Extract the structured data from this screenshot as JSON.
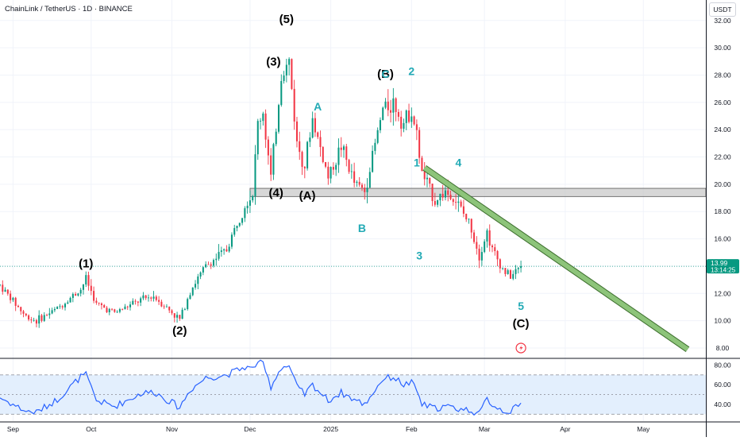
{
  "header": {
    "symbol_title": "ChainLink / TetherUS · 1D · BINANCE",
    "currency": "USDT"
  },
  "price_badge": {
    "price": "13.99",
    "countdown": "13:14:25",
    "color": "#089981"
  },
  "colors": {
    "up": "#089981",
    "down": "#f23645",
    "rsi_line": "#2962ff",
    "rsi_band": "#e3effd",
    "zone": "#c9c9c9",
    "trendline": "#8dc47a",
    "wave_black": "#000000",
    "wave_teal": "#22aab5"
  },
  "chart_data": [
    {
      "type": "candlestick",
      "title": "ChainLink / TetherUS · 1D · BINANCE",
      "y_axis_ticks": [
        "32.00",
        "30.00",
        "28.00",
        "26.00",
        "24.00",
        "22.00",
        "20.00",
        "18.00",
        "16.00",
        "14.00",
        "12.00",
        "10.00",
        "8.00"
      ],
      "ylim": [
        7.3,
        33.5
      ],
      "x_axis_ticks": [
        "Sep",
        "Oct",
        "Nov",
        "Dec",
        "2025",
        "Feb",
        "Mar",
        "Apr",
        "May"
      ],
      "x_range": [
        "2024-08-27",
        "2025-05-25"
      ],
      "candles_anchor": {
        "start": "2024-08-27",
        "end": "2025-03-15"
      },
      "close_path": [
        [
          "2024-08-27",
          12.6
        ],
        [
          "2024-09-06",
          10.3
        ],
        [
          "2024-09-10",
          10.0
        ],
        [
          "2024-09-18",
          10.9
        ],
        [
          "2024-09-27",
          12.3
        ],
        [
          "2024-09-29",
          13.1
        ],
        [
          "2024-10-03",
          11.2
        ],
        [
          "2024-10-10",
          10.6
        ],
        [
          "2024-10-20",
          11.5
        ],
        [
          "2024-10-25",
          11.8
        ],
        [
          "2024-11-04",
          10.1
        ],
        [
          "2024-11-08",
          12.2
        ],
        [
          "2024-11-14",
          14.0
        ],
        [
          "2024-11-22",
          15.2
        ],
        [
          "2024-11-29",
          18.6
        ],
        [
          "2024-12-02",
          19.3
        ],
        [
          "2024-12-04",
          24.5
        ],
        [
          "2024-12-06",
          25.3
        ],
        [
          "2024-12-09",
          20.4
        ],
        [
          "2024-12-13",
          28.0
        ],
        [
          "2024-12-16",
          29.0
        ],
        [
          "2024-12-19",
          23.0
        ],
        [
          "2024-12-22",
          21.5
        ],
        [
          "2024-12-25",
          24.8
        ],
        [
          "2024-12-31",
          20.5
        ],
        [
          "2025-01-05",
          22.8
        ],
        [
          "2025-01-10",
          20.1
        ],
        [
          "2025-01-14",
          19.5
        ],
        [
          "2025-01-21",
          25.5
        ],
        [
          "2025-01-25",
          26.0
        ],
        [
          "2025-01-29",
          24.5
        ],
        [
          "2025-02-01",
          25.5
        ],
        [
          "2025-02-03",
          23.5
        ],
        [
          "2025-02-05",
          20.8
        ],
        [
          "2025-02-10",
          18.8
        ],
        [
          "2025-02-14",
          19.5
        ],
        [
          "2025-02-18",
          18.8
        ],
        [
          "2025-02-24",
          16.8
        ],
        [
          "2025-02-27",
          14.8
        ],
        [
          "2025-03-02",
          16.5
        ],
        [
          "2025-03-04",
          15.2
        ],
        [
          "2025-03-08",
          13.8
        ],
        [
          "2025-03-11",
          13.2
        ],
        [
          "2025-03-15",
          13.99
        ]
      ],
      "horizontal_zone": {
        "from": "2024-12-01",
        "low": 19.1,
        "high": 19.7
      },
      "trendline": {
        "start": [
          "2025-02-06",
          21.2
        ],
        "end": [
          "2025-05-18",
          7.9
        ]
      },
      "current_price": 13.99,
      "wave_labels_black": [
        {
          "text": "(1)",
          "date": "2024-09-29",
          "price": 13.9
        },
        {
          "text": "(2)",
          "date": "2024-11-04",
          "price": 9.0
        },
        {
          "text": "(3)",
          "date": "2024-12-10",
          "price": 28.7
        },
        {
          "text": "(4)",
          "date": "2024-12-11",
          "price": 19.1
        },
        {
          "text": "(5)",
          "date": "2024-12-15",
          "price": 31.8
        },
        {
          "text": "(A)",
          "date": "2024-12-23",
          "price": 18.9
        },
        {
          "text": "(B)",
          "date": "2025-01-22",
          "price": 27.8
        },
        {
          "text": "(C)",
          "date": "2025-03-15",
          "price": 9.5
        }
      ],
      "wave_labels_teal": [
        {
          "text": "A",
          "date": "2024-12-27",
          "price": 25.4
        },
        {
          "text": "B",
          "date": "2025-01-13",
          "price": 16.5
        },
        {
          "text": "C",
          "date": "2025-01-22",
          "price": 27.8
        },
        {
          "text": "1",
          "date": "2025-02-03",
          "price": 21.3
        },
        {
          "text": "2",
          "date": "2025-02-01",
          "price": 28.0
        },
        {
          "text": "3",
          "date": "2025-02-04",
          "price": 14.5
        },
        {
          "text": "4",
          "date": "2025-02-19",
          "price": 21.3
        },
        {
          "text": "5",
          "date": "2025-03-15",
          "price": 10.8
        }
      ]
    },
    {
      "type": "line",
      "name": "RSI",
      "y_axis_ticks": [
        "80.00",
        "60.00",
        "40.00"
      ],
      "ylim": [
        23,
        86
      ],
      "band": [
        30,
        70
      ],
      "mid": 50,
      "values_path": [
        [
          "2024-08-27",
          47
        ],
        [
          "2024-09-06",
          33
        ],
        [
          "2024-09-10",
          32
        ],
        [
          "2024-09-18",
          45
        ],
        [
          "2024-09-27",
          68
        ],
        [
          "2024-09-29",
          70
        ],
        [
          "2024-10-03",
          44
        ],
        [
          "2024-10-10",
          38
        ],
        [
          "2024-10-20",
          51
        ],
        [
          "2024-10-25",
          53
        ],
        [
          "2024-11-04",
          37
        ],
        [
          "2024-11-08",
          55
        ],
        [
          "2024-11-14",
          67
        ],
        [
          "2024-11-22",
          70
        ],
        [
          "2024-11-29",
          78
        ],
        [
          "2024-12-02",
          76
        ],
        [
          "2024-12-04",
          84
        ],
        [
          "2024-12-06",
          80
        ],
        [
          "2024-12-09",
          58
        ],
        [
          "2024-12-13",
          78
        ],
        [
          "2024-12-16",
          79
        ],
        [
          "2024-12-19",
          58
        ],
        [
          "2024-12-22",
          50
        ],
        [
          "2024-12-25",
          60
        ],
        [
          "2024-12-31",
          44
        ],
        [
          "2025-01-05",
          52
        ],
        [
          "2025-01-10",
          45
        ],
        [
          "2025-01-14",
          40
        ],
        [
          "2025-01-21",
          66
        ],
        [
          "2025-01-25",
          68
        ],
        [
          "2025-01-29",
          60
        ],
        [
          "2025-02-01",
          62
        ],
        [
          "2025-02-03",
          54
        ],
        [
          "2025-02-05",
          40
        ],
        [
          "2025-02-10",
          36
        ],
        [
          "2025-02-14",
          38
        ],
        [
          "2025-02-18",
          36
        ],
        [
          "2025-02-24",
          34
        ],
        [
          "2025-02-27",
          30
        ],
        [
          "2025-03-02",
          46
        ],
        [
          "2025-03-04",
          40
        ],
        [
          "2025-03-08",
          34
        ],
        [
          "2025-03-11",
          33
        ],
        [
          "2025-03-15",
          40
        ]
      ]
    }
  ]
}
